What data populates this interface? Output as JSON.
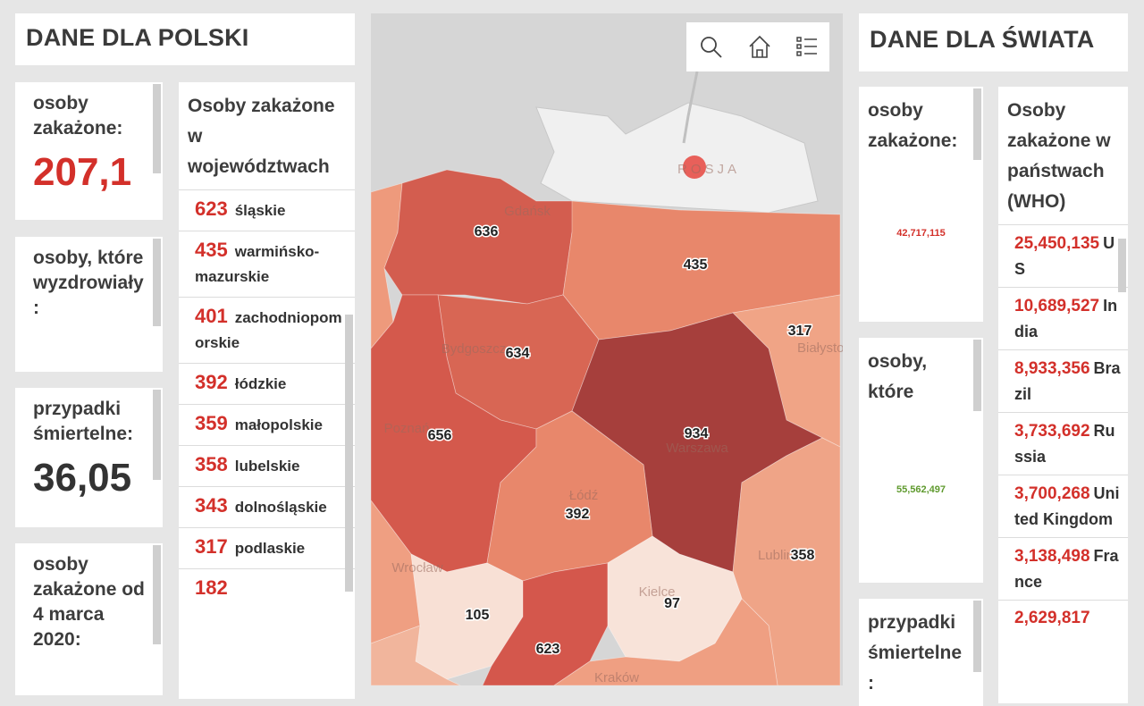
{
  "poland": {
    "title": "DANE DLA POLSKI",
    "cards": [
      {
        "label": "osoby zakażone:",
        "value": "207,1"
      },
      {
        "label": "osoby, które wyzdrowiały:"
      },
      {
        "label": "przypadki śmiertelne:",
        "value": "36,05"
      },
      {
        "label": "osoby zakażone od 4 marca 2020:"
      }
    ],
    "list": {
      "title": "Osoby zakażone w województwach",
      "items": [
        {
          "value": "623",
          "name": "śląskie"
        },
        {
          "value": "435",
          "name": "warmińsko-mazurskie"
        },
        {
          "value": "401",
          "name": "zachodniopomorskie"
        },
        {
          "value": "392",
          "name": "łódzkie"
        },
        {
          "value": "359",
          "name": "małopolskie"
        },
        {
          "value": "358",
          "name": "lubelskie"
        },
        {
          "value": "343",
          "name": "dolnośląskie"
        },
        {
          "value": "317",
          "name": "podlaskie"
        },
        {
          "value": "182"
        }
      ]
    }
  },
  "map": {
    "places": [
      "ROSJA",
      "Gdańsk",
      "Bydgoszcz",
      "Poznań",
      "Warszawa",
      "Łódź",
      "Wrocław",
      "Kielce",
      "Kraków",
      "Białystok",
      "Lublin"
    ],
    "labels": [
      "636",
      "435",
      "317",
      "634",
      "656",
      "934",
      "392",
      "358",
      "105",
      "97",
      "623"
    ]
  },
  "world": {
    "title": "DANE DLA ŚWIATA",
    "cards": [
      {
        "label": "osoby zakażone:",
        "value": "42,717,115"
      },
      {
        "label": "osoby, które",
        "value": "55,562,497"
      },
      {
        "label": "przypadki śmiertelne:"
      }
    ],
    "list": {
      "title": "Osoby zakażone w państwach (WHO)",
      "items": [
        {
          "value": "25,450,135",
          "name": "US"
        },
        {
          "value": "10,689,527",
          "name": "India"
        },
        {
          "value": "8,933,356",
          "name": "Brazil"
        },
        {
          "value": "3,733,692",
          "name": "Russia"
        },
        {
          "value": "3,700,268",
          "name": "United Kingdom"
        },
        {
          "value": "3,138,498",
          "name": "France"
        },
        {
          "value": "2,629,817"
        }
      ]
    }
  }
}
